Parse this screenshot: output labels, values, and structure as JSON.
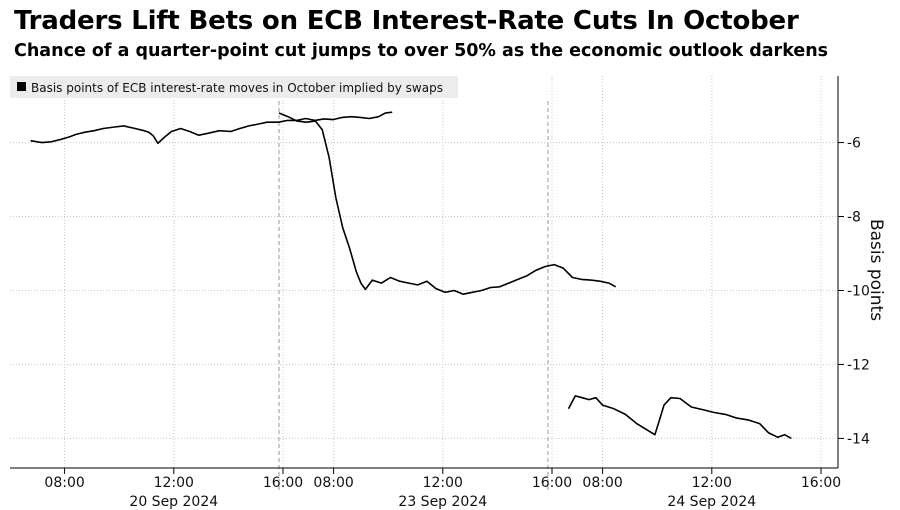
{
  "header": {
    "title": "Traders Lift Bets on ECB Interest-Rate Cuts In October",
    "subtitle": "Chance of a quarter-point cut jumps to over 50% as the economic outlook darkens"
  },
  "chart_data": {
    "type": "line",
    "title": "Traders Lift Bets on ECB Interest-Rate Cuts In October",
    "subtitle": "Chance of a quarter-point cut jumps to over 50% as the economic outlook darkens",
    "ylabel": "Basis points",
    "ylim": [
      -14.8,
      -4.2
    ],
    "y_ticks": [
      -6,
      -8,
      -10,
      -12,
      -14
    ],
    "y_axis_side": "right",
    "grid": true,
    "legend": {
      "position": "top-left",
      "entries": [
        "Basis points of ECB interest-rate moves in October implied by swaps"
      ]
    },
    "colors": {
      "line": "#000000",
      "grid": "#c8c8c8",
      "legend_bg": "#ececec"
    },
    "x_ticks": [
      {
        "day": 0,
        "label": "08:00"
      },
      {
        "day": 0,
        "label": "12:00"
      },
      {
        "day": 0,
        "label": "16:00"
      },
      {
        "day": 1,
        "label": "08:00"
      },
      {
        "day": 1,
        "label": "12:00"
      },
      {
        "day": 1,
        "label": "16:00"
      },
      {
        "day": 2,
        "label": "08:00"
      },
      {
        "day": 2,
        "label": "12:00"
      },
      {
        "day": 2,
        "label": "16:00"
      }
    ],
    "dates": [
      "20 Sep 2024",
      "23 Sep 2024",
      "24 Sep 2024"
    ],
    "series": [
      {
        "name": "Basis points of ECB interest-rate moves in October implied by swaps",
        "segments": [
          {
            "date": "20 Sep 2024",
            "points": [
              [
                "06:45",
                -5.95
              ],
              [
                "07:10",
                -6.0
              ],
              [
                "07:30",
                -5.98
              ],
              [
                "07:50",
                -5.92
              ],
              [
                "08:10",
                -5.85
              ],
              [
                "08:25",
                -5.78
              ],
              [
                "08:45",
                -5.72
              ],
              [
                "09:05",
                -5.68
              ],
              [
                "09:25",
                -5.62
              ],
              [
                "09:50",
                -5.58
              ],
              [
                "10:10",
                -5.55
              ],
              [
                "10:35",
                -5.62
              ],
              [
                "10:55",
                -5.68
              ],
              [
                "11:05",
                -5.72
              ],
              [
                "11:15",
                -5.82
              ],
              [
                "11:25",
                -6.02
              ],
              [
                "11:40",
                -5.85
              ],
              [
                "11:55",
                -5.7
              ],
              [
                "12:15",
                -5.62
              ],
              [
                "12:35",
                -5.7
              ],
              [
                "12:55",
                -5.8
              ],
              [
                "13:15",
                -5.75
              ],
              [
                "13:40",
                -5.68
              ],
              [
                "14:05",
                -5.7
              ],
              [
                "14:25",
                -5.62
              ],
              [
                "14:45",
                -5.55
              ],
              [
                "15:05",
                -5.5
              ],
              [
                "15:25",
                -5.45
              ],
              [
                "15:50",
                -5.45
              ],
              [
                "16:10",
                -5.4
              ],
              [
                "16:30",
                -5.4
              ],
              [
                "16:50",
                -5.35
              ],
              [
                "17:10",
                -5.4
              ],
              [
                "17:30",
                -5.36
              ],
              [
                "17:50",
                -5.38
              ],
              [
                "18:10",
                -5.32
              ],
              [
                "18:30",
                -5.3
              ],
              [
                "18:50",
                -5.32
              ],
              [
                "19:10",
                -5.35
              ],
              [
                "19:30",
                -5.3
              ],
              [
                "19:45",
                -5.2
              ],
              [
                "20:00",
                -5.18
              ]
            ]
          },
          {
            "date": "23 Sep 2024",
            "points": [
              [
                "06:00",
                -5.2
              ],
              [
                "06:20",
                -5.3
              ],
              [
                "06:40",
                -5.42
              ],
              [
                "07:00",
                -5.45
              ],
              [
                "07:20",
                -5.42
              ],
              [
                "07:35",
                -5.65
              ],
              [
                "07:50",
                -6.4
              ],
              [
                "08:05",
                -7.5
              ],
              [
                "08:20",
                -8.3
              ],
              [
                "08:35",
                -8.85
              ],
              [
                "08:50",
                -9.5
              ],
              [
                "09:00",
                -9.8
              ],
              [
                "09:10",
                -9.97
              ],
              [
                "09:25",
                -9.72
              ],
              [
                "09:45",
                -9.8
              ],
              [
                "10:05",
                -9.65
              ],
              [
                "10:25",
                -9.75
              ],
              [
                "10:45",
                -9.8
              ],
              [
                "11:05",
                -9.85
              ],
              [
                "11:25",
                -9.75
              ],
              [
                "11:45",
                -9.95
              ],
              [
                "12:05",
                -10.05
              ],
              [
                "12:25",
                -10.0
              ],
              [
                "12:45",
                -10.1
              ],
              [
                "13:05",
                -10.05
              ],
              [
                "13:25",
                -10.0
              ],
              [
                "13:45",
                -9.92
              ],
              [
                "14:05",
                -9.9
              ],
              [
                "14:25",
                -9.8
              ],
              [
                "14:45",
                -9.7
              ],
              [
                "15:05",
                -9.6
              ],
              [
                "15:25",
                -9.45
              ],
              [
                "15:45",
                -9.35
              ],
              [
                "16:05",
                -9.3
              ],
              [
                "16:25",
                -9.4
              ],
              [
                "16:45",
                -9.65
              ],
              [
                "17:05",
                -9.7
              ],
              [
                "17:25",
                -9.72
              ],
              [
                "17:45",
                -9.75
              ],
              [
                "18:05",
                -9.8
              ],
              [
                "18:20",
                -9.9
              ]
            ]
          },
          {
            "date": "24 Sep 2024",
            "points": [
              [
                "06:45",
                -13.2
              ],
              [
                "07:00",
                -12.85
              ],
              [
                "07:15",
                -12.9
              ],
              [
                "07:30",
                -12.95
              ],
              [
                "07:45",
                -12.9
              ],
              [
                "08:00",
                -13.1
              ],
              [
                "08:25",
                -13.2
              ],
              [
                "08:50",
                -13.35
              ],
              [
                "09:15",
                -13.6
              ],
              [
                "09:35",
                -13.75
              ],
              [
                "09:55",
                -13.9
              ],
              [
                "10:05",
                -13.5
              ],
              [
                "10:15",
                -13.1
              ],
              [
                "10:30",
                -12.9
              ],
              [
                "10:50",
                -12.92
              ],
              [
                "11:15",
                -13.15
              ],
              [
                "11:40",
                -13.22
              ],
              [
                "12:05",
                -13.3
              ],
              [
                "12:30",
                -13.35
              ],
              [
                "12:55",
                -13.45
              ],
              [
                "13:20",
                -13.5
              ],
              [
                "13:45",
                -13.6
              ],
              [
                "14:05",
                -13.85
              ],
              [
                "14:25",
                -13.97
              ],
              [
                "14:40",
                -13.9
              ],
              [
                "14:55",
                -14.0
              ]
            ]
          }
        ]
      }
    ]
  }
}
